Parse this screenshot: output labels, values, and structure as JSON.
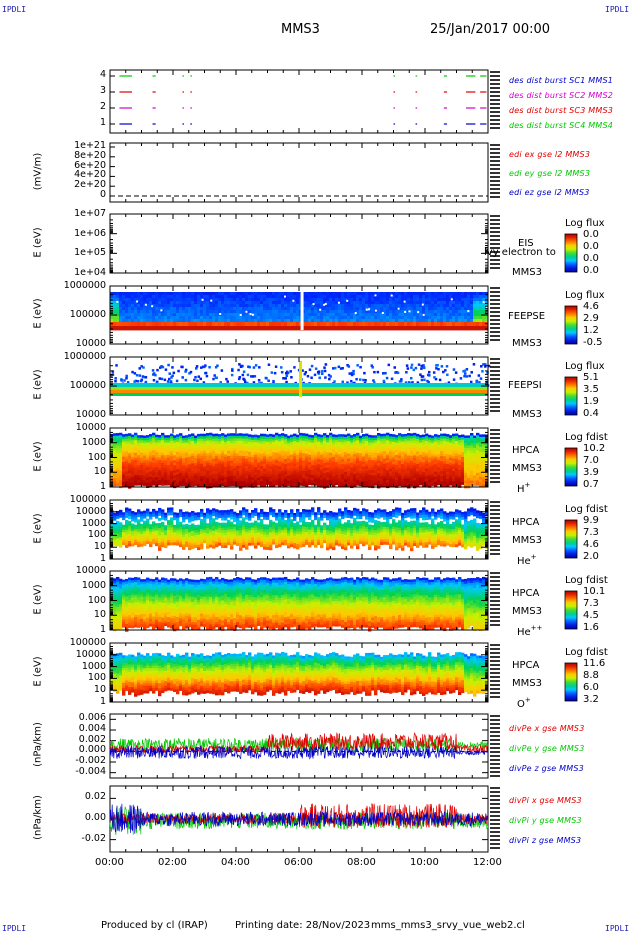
{
  "header": {
    "corner_tl": "IPDLI",
    "corner_tr": "IPDLI",
    "corner_bl": "IPDLI",
    "corner_br": "IPDLI",
    "spacecraft": "MMS3",
    "date_time": "25/Jan/2017 00:00"
  },
  "footer": {
    "produced_by": "Produced by cl (IRAP)",
    "printing_date": "Printing date: 28/Nov/2023",
    "script_name": "mms_mms3_srvy_vue_web2.cl"
  },
  "x_axis": {
    "ticks": [
      "00:00",
      "02:00",
      "04:00",
      "06:00",
      "08:00",
      "10:00",
      "12:00"
    ],
    "range_hours": [
      0,
      12
    ]
  },
  "colors": {
    "red": "#e00000",
    "green": "#00c800",
    "blue": "#0000c8",
    "magenta": "#d000d0",
    "cb_low": "#0000a0",
    "cb_high": "#b00000"
  },
  "chart_data": [
    {
      "type": "scatter",
      "name": "burst",
      "y_ticks": [
        "4",
        "3",
        "2",
        "1"
      ],
      "legend": [
        {
          "text": "des dist burst SC1 MMS1",
          "color": "#0000c8"
        },
        {
          "text": "des dist burst SC2 MMS2",
          "color": "#d000d0"
        },
        {
          "text": "des dist burst SC3 MMS3",
          "color": "#e00000"
        },
        {
          "text": "des dist burst SC4 MMS4",
          "color": "#00c800"
        }
      ],
      "series": [
        {
          "level": 4,
          "color": "#00c800",
          "segments": [
            [
              0.3,
              0.7
            ],
            [
              1.35,
              1.45
            ],
            [
              2.3,
              2.35
            ],
            [
              2.55,
              2.6
            ],
            [
              9.0,
              9.05
            ],
            [
              9.7,
              9.75
            ],
            [
              10.6,
              10.7
            ],
            [
              11.3,
              11.6
            ],
            [
              11.75,
              11.95
            ]
          ]
        },
        {
          "level": 3,
          "color": "#e00000",
          "segments": [
            [
              0.3,
              0.7
            ],
            [
              1.35,
              1.45
            ],
            [
              2.3,
              2.35
            ],
            [
              2.55,
              2.6
            ],
            [
              9.0,
              9.05
            ],
            [
              9.7,
              9.75
            ],
            [
              10.6,
              10.7
            ],
            [
              11.3,
              11.6
            ],
            [
              11.75,
              11.95
            ]
          ]
        },
        {
          "level": 2,
          "color": "#d000d0",
          "segments": [
            [
              0.3,
              0.7
            ],
            [
              1.35,
              1.45
            ],
            [
              2.3,
              2.35
            ],
            [
              2.55,
              2.6
            ],
            [
              9.0,
              9.05
            ],
            [
              9.7,
              9.75
            ],
            [
              10.6,
              10.7
            ],
            [
              11.3,
              11.6
            ],
            [
              11.75,
              11.95
            ]
          ]
        },
        {
          "level": 1,
          "color": "#0000c8",
          "segments": [
            [
              0.3,
              0.7
            ],
            [
              1.35,
              1.45
            ],
            [
              2.3,
              2.35
            ],
            [
              2.55,
              2.6
            ],
            [
              9.0,
              9.05
            ],
            [
              9.7,
              9.75
            ],
            [
              10.6,
              10.7
            ],
            [
              11.3,
              11.6
            ],
            [
              11.75,
              11.95
            ]
          ]
        }
      ]
    },
    {
      "type": "line",
      "name": "edi",
      "ylabel": "(mV/m)",
      "y_ticks": [
        "1e+21",
        "8e+20",
        "6e+20",
        "4e+20",
        "2e+20",
        "0"
      ],
      "legend": [
        {
          "text": "edi ex gse l2 MMS3",
          "color": "#e00000"
        },
        {
          "text": "edi ey gse l2 MMS3",
          "color": "#00c800"
        },
        {
          "text": "edi ez gse l2 MMS3",
          "color": "#0000c8"
        }
      ]
    },
    {
      "type": "heatmap",
      "name": "eis",
      "ylabel": "E (eV)",
      "y_ticks": [
        "1e+07",
        "1e+06",
        "1e+05",
        "1e+04"
      ],
      "instrument": [
        "EIS",
        "MMS3"
      ],
      "overlay_text": "lvy electron to",
      "colorbar": {
        "title": "Log flux",
        "ticks": [
          "0.0",
          "0.0",
          "0.0",
          "0.0"
        ]
      }
    },
    {
      "type": "heatmap",
      "name": "feepse",
      "ylabel": "E (eV)",
      "y_ticks": [
        "1000000",
        "100000",
        "10000"
      ],
      "instrument": [
        "FEEPSE",
        "MMS3"
      ],
      "colorbar": {
        "title": "Log flux",
        "ticks": [
          "4.6",
          "2.9",
          "1.2",
          "-0.5"
        ]
      }
    },
    {
      "type": "heatmap",
      "name": "feepsi",
      "ylabel": "E (eV)",
      "y_ticks": [
        "1000000",
        "100000",
        "10000"
      ],
      "instrument": [
        "FEEPSI",
        "MMS3"
      ],
      "colorbar": {
        "title": "Log flux",
        "ticks": [
          "5.1",
          "3.5",
          "1.9",
          "0.4"
        ]
      }
    },
    {
      "type": "heatmap",
      "name": "hpca_h",
      "ylabel": "E (eV)",
      "y_ticks": [
        "10000",
        "1000",
        "100",
        "10",
        "1"
      ],
      "instrument": [
        "HPCA",
        "MMS3",
        "H",
        "+"
      ],
      "colorbar": {
        "title": "Log fdist",
        "ticks": [
          "10.2",
          "7.0",
          "3.9",
          "0.7"
        ]
      }
    },
    {
      "type": "heatmap",
      "name": "hpca_he",
      "ylabel": "E (eV)",
      "y_ticks": [
        "100000",
        "10000",
        "1000",
        "100",
        "10",
        "1"
      ],
      "instrument": [
        "HPCA",
        "MMS3",
        "He",
        "+"
      ],
      "colorbar": {
        "title": "Log fdist",
        "ticks": [
          "9.9",
          "7.3",
          "4.6",
          "2.0"
        ]
      }
    },
    {
      "type": "heatmap",
      "name": "hpca_hepp",
      "ylabel": "E (eV)",
      "y_ticks": [
        "10000",
        "1000",
        "100",
        "10",
        "1"
      ],
      "instrument": [
        "HPCA",
        "MMS3",
        "He",
        "++"
      ],
      "colorbar": {
        "title": "Log fdist",
        "ticks": [
          "10.1",
          "7.3",
          "4.5",
          "1.6"
        ]
      }
    },
    {
      "type": "heatmap",
      "name": "hpca_o",
      "ylabel": "E (eV)",
      "y_ticks": [
        "100000",
        "10000",
        "1000",
        "100",
        "10",
        "1"
      ],
      "instrument": [
        "HPCA",
        "MMS3",
        "O",
        "+"
      ],
      "colorbar": {
        "title": "Log fdist",
        "ticks": [
          "11.6",
          "8.8",
          "6.0",
          "3.2"
        ]
      }
    },
    {
      "type": "line",
      "name": "divpe",
      "ylabel": "(nPa/km)",
      "y_ticks": [
        "0.006",
        "0.004",
        "0.002",
        "0.000",
        "-0.002",
        "-0.004"
      ],
      "ylim": [
        -0.005,
        0.007
      ],
      "legend": [
        {
          "text": "divPe x gse MMS3",
          "color": "#e00000"
        },
        {
          "text": "divPe y gse MMS3",
          "color": "#00c800"
        },
        {
          "text": "divPe z gse MMS3",
          "color": "#0000c8"
        }
      ]
    },
    {
      "type": "line",
      "name": "divpi",
      "ylabel": "(nPa/km)",
      "y_ticks": [
        "0.02",
        "0.00",
        "-0.02"
      ],
      "ylim": [
        -0.032,
        0.032
      ],
      "legend": [
        {
          "text": "divPi x gse MMS3",
          "color": "#e00000"
        },
        {
          "text": "divPi y gse MMS3",
          "color": "#00c800"
        },
        {
          "text": "divPi z gse MMS3",
          "color": "#0000c8"
        }
      ]
    }
  ]
}
